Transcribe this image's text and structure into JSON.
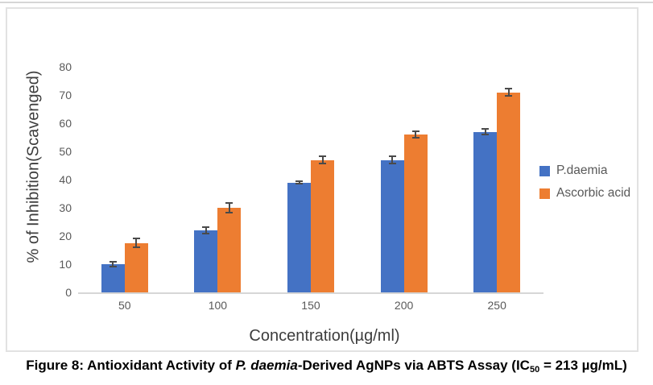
{
  "figure": {
    "caption": {
      "prefix": "Figure 8: Antioxidant Activity of ",
      "italic": "P. daemia",
      "mid": "-Derived AgNPs via ABTS Assay (IC",
      "sub": "50",
      "suffix": " = 213 µg/mL)"
    }
  },
  "chart_data": {
    "type": "bar",
    "title": "",
    "xlabel": "Concentration(µg/ml)",
    "ylabel": "% of Inhibition(Scavenged)",
    "categories": [
      "50",
      "100",
      "150",
      "200",
      "250"
    ],
    "series": [
      {
        "name": "P.daemia",
        "color": "#4472C4",
        "values": [
          10,
          22,
          39,
          47,
          57
        ],
        "error_bars": [
          1.2,
          1.5,
          0.8,
          1.5,
          1.4
        ]
      },
      {
        "name": "Ascorbic acid",
        "color": "#ED7D31",
        "values": [
          17.5,
          30,
          47,
          56,
          71
        ],
        "error_bars": [
          1.8,
          2,
          1.5,
          1.3,
          1.7
        ]
      }
    ],
    "ylim": [
      0,
      80
    ],
    "y_ticks": [
      0,
      10,
      20,
      30,
      40,
      50,
      60,
      70,
      80
    ],
    "grid": false,
    "legend_position": "right",
    "style": {
      "axis_line_color": "#d6d6d6",
      "tick_label_color": "#595959",
      "axis_title_color": "#3d3d3d",
      "error_bar_color": "#4a4a4a",
      "frame_border_color": "#e2e2e2"
    }
  }
}
